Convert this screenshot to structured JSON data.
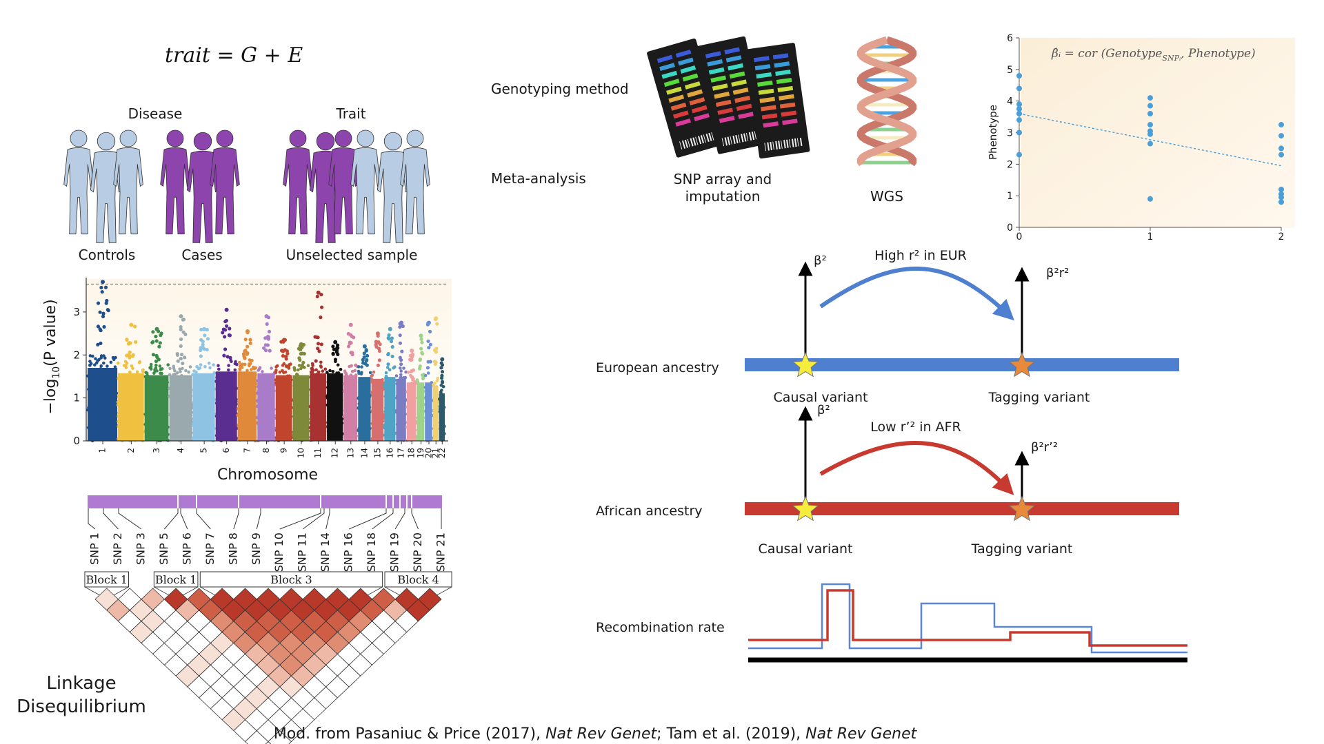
{
  "formula": {
    "lhs": "trait",
    "eq": " = ",
    "g": "G",
    "plus": " + ",
    "e": "E"
  },
  "study_design": {
    "disease_label": "Disease",
    "trait_label": "Trait",
    "controls_label": "Controls",
    "cases_label": "Cases",
    "unselected_label": "Unselected sample",
    "colors": {
      "control": "#b8cde3",
      "case": "#8e44ad"
    }
  },
  "genotyping": {
    "method_label": "Genotyping method",
    "meta_label": "Meta-analysis",
    "snp_array_label_1": "SNP array and",
    "snp_array_label_2": "imputation",
    "wgs_label": "WGS"
  },
  "regression": {
    "formula_text": "β̂ᵢ = cor (Genotype",
    "formula_sub": "SNPᵢ",
    "formula_end": ", Phenotype)",
    "chart_data": {
      "type": "scatter",
      "ylabel": "Phenotype",
      "ylim": [
        0,
        6
      ],
      "xlim": [
        0,
        2
      ],
      "yticks": [
        "0",
        "1",
        "2",
        "3",
        "4",
        "5",
        "6"
      ],
      "xticks": [
        "0",
        "1",
        "2"
      ],
      "points": [
        [
          0,
          4.8
        ],
        [
          0,
          4.4
        ],
        [
          0,
          3.9
        ],
        [
          0,
          3.75
        ],
        [
          0,
          3.6
        ],
        [
          0,
          3.4
        ],
        [
          0,
          3.0
        ],
        [
          0,
          2.3
        ],
        [
          1,
          4.1
        ],
        [
          1,
          3.85
        ],
        [
          1,
          3.6
        ],
        [
          1,
          3.25
        ],
        [
          1,
          3.05
        ],
        [
          1,
          2.95
        ],
        [
          1,
          2.65
        ],
        [
          1,
          0.9
        ],
        [
          2,
          3.25
        ],
        [
          2,
          2.9
        ],
        [
          2,
          2.5
        ],
        [
          2,
          2.3
        ],
        [
          2,
          1.2
        ],
        [
          2,
          1.05
        ],
        [
          2,
          0.95
        ],
        [
          2,
          0.8
        ]
      ],
      "trend": [
        [
          0,
          3.6
        ],
        [
          2,
          1.95
        ]
      ],
      "point_color": "#4a9fd8"
    }
  },
  "manhattan": {
    "chart_data": {
      "type": "scatter",
      "ylabel_pre": "−log",
      "ylabel_sub": "10",
      "ylabel_post": "(P value)",
      "xlabel": "Chromosome",
      "ylim": [
        0,
        3.8
      ],
      "yticks": [
        "0",
        "1",
        "2",
        "3"
      ],
      "threshold": 3.65,
      "chromosomes": [
        "1",
        "2",
        "3",
        "4",
        "5",
        "6",
        "7",
        "8",
        "9",
        "10",
        "11",
        "12",
        "13",
        "14",
        "15",
        "16",
        "17",
        "18",
        "19",
        "20",
        "21",
        "22"
      ],
      "colors": [
        "#1f4e8c",
        "#f0c040",
        "#3c8b4a",
        "#9aa9ae",
        "#8ec3e4",
        "#5a2d91",
        "#e0893a",
        "#a87cc9",
        "#c0452c",
        "#7e8a3a",
        "#a83232",
        "#111111",
        "#d17fa4",
        "#2a6e9e",
        "#d86f6f",
        "#4fa3c4",
        "#7a7dc1",
        "#f0a0a0",
        "#9fd38a",
        "#6b8fd6",
        "#f0d070",
        "#2d5a6b"
      ],
      "peaks": [
        3.7,
        2.7,
        2.6,
        2.9,
        2.6,
        3.05,
        2.55,
        2.9,
        2.35,
        2.25,
        3.45,
        2.3,
        2.7,
        2.2,
        2.5,
        2.6,
        2.75,
        2.1,
        2.45,
        2.75,
        2.85,
        1.9
      ],
      "base": [
        2.0,
        1.85,
        1.8,
        1.8,
        1.85,
        1.9,
        1.9,
        1.85,
        1.8,
        1.8,
        1.85,
        1.85,
        1.8,
        1.75,
        1.7,
        1.75,
        1.7,
        1.6,
        1.6,
        1.6,
        1.5,
        1.3
      ],
      "widths": [
        8,
        7,
        6.5,
        6.2,
        6,
        5.8,
        5.2,
        4.8,
        4.5,
        4.5,
        4.5,
        4.4,
        3.8,
        3.5,
        3.4,
        3.1,
        2.8,
        2.7,
        2.1,
        2.1,
        1.6,
        1.7
      ]
    }
  },
  "ld": {
    "snps": [
      "SNP 1",
      "SNP 2",
      "SNP 3",
      "SNP 5",
      "SNP 6",
      "SNP 7",
      "SNP 8",
      "SNP 9",
      "SNP 10",
      "SNP 11",
      "SNP 14",
      "SNP 16",
      "SNP 18",
      "SNP 19",
      "SNP 20",
      "SNP 21"
    ],
    "blocks": [
      {
        "label": "Block 1",
        "start": 0,
        "end": 1
      },
      {
        "label": "Block 1",
        "start": 3,
        "end": 4
      },
      {
        "label": "Block 3",
        "start": 5,
        "end": 12
      },
      {
        "label": "Block 4",
        "start": 13,
        "end": 15
      }
    ],
    "title_line1": "Linkage",
    "title_line2": "Disequilibrium",
    "bar_color": "#b07ad3"
  },
  "ancestry": {
    "european_label": "European ancestry",
    "african_label": "African ancestry",
    "causal_label": "Causal variant",
    "tagging_label": "Tagging variant",
    "high_r2": "High r² in EUR",
    "low_r2": "Low r’² in AFR",
    "beta2": "β²",
    "beta2r2": "β²r²",
    "beta2r2_afr": "β²r’²",
    "eur_color": "#4f7fcf",
    "afr_color": "#c83a2f"
  },
  "recombination": {
    "label": "Recombination rate"
  },
  "citation": {
    "part1": "Mod. from Pasaniuc & Price (2017), ",
    "journal1": "Nat Rev Genet",
    "part2": ";  Tam et al. (2019), ",
    "journal2": "Nat Rev Genet"
  }
}
